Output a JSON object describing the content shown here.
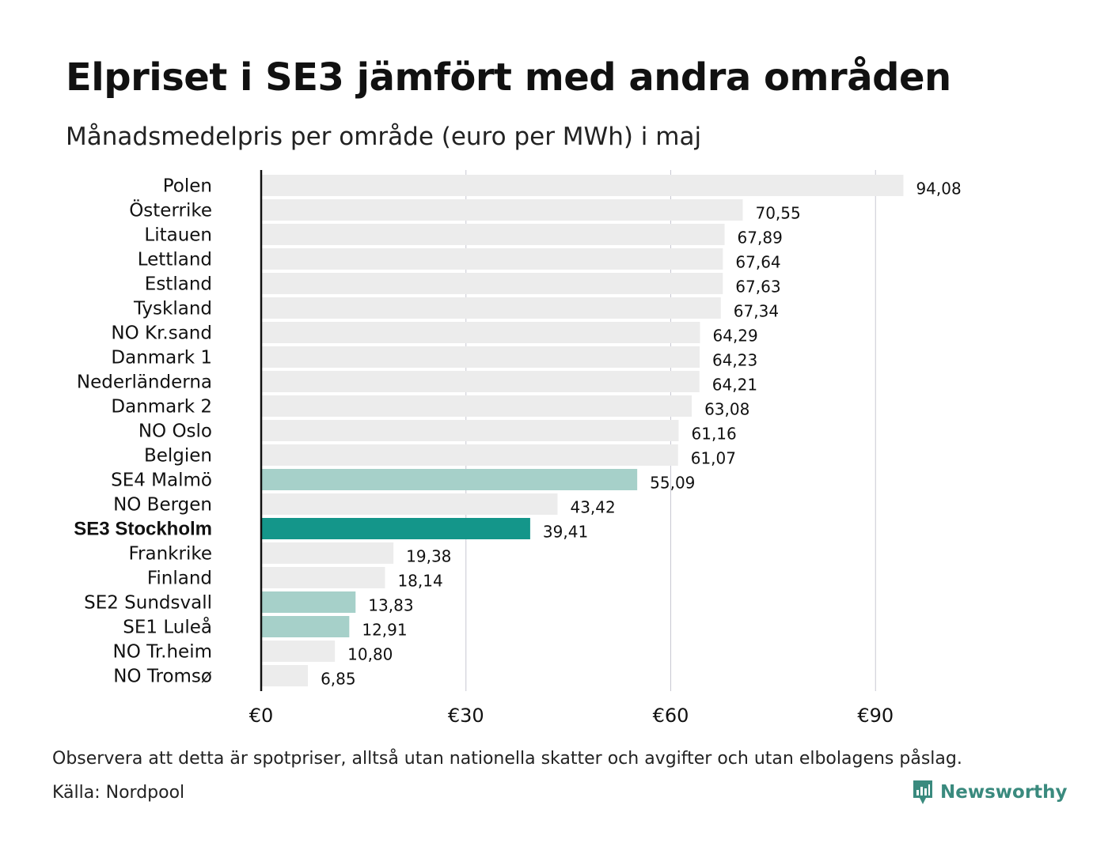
{
  "title": "Elpriset i SE3 jämfört med andra områden",
  "subtitle": "Månadsmedelpris per område (euro per MWh) i maj",
  "footnote": "Observera att detta är spotpriser, alltså utan nationella skatter och avgifter och utan elbolagens påslag.",
  "source": "Källa: Nordpool",
  "brand": {
    "name": "Newsworthy",
    "icon": "chart-bubble-icon",
    "color": "#3a8a7e"
  },
  "colors": {
    "default": "#ececec",
    "highlight": "#a6d0c9",
    "focus": "#14968a",
    "axis": "#111111",
    "grid": "#c8c8d2"
  },
  "chart_data": {
    "type": "bar",
    "orientation": "horizontal",
    "categories": [
      "Polen",
      "Österrike",
      "Litauen",
      "Lettland",
      "Estland",
      "Tyskland",
      "NO Kr.sand",
      "Danmark 1",
      "Nederländerna",
      "Danmark 2",
      "NO Oslo",
      "Belgien",
      "SE4 Malmö",
      "NO Bergen",
      "SE3 Stockholm",
      "Frankrike",
      "Finland",
      "SE2 Sundsvall",
      "SE1 Luleå",
      "NO Tr.heim",
      "NO Tromsø"
    ],
    "values": [
      94.08,
      70.55,
      67.89,
      67.64,
      67.63,
      67.34,
      64.29,
      64.23,
      64.21,
      63.08,
      61.16,
      61.07,
      55.09,
      43.42,
      39.41,
      19.38,
      18.14,
      13.83,
      12.91,
      10.8,
      6.85
    ],
    "value_labels": [
      "94,08",
      "70,55",
      "67,89",
      "67,64",
      "67,63",
      "67,34",
      "64,29",
      "64,23",
      "64,21",
      "63,08",
      "61,16",
      "61,07",
      "55,09",
      "43,42",
      "39,41",
      "19,38",
      "18,14",
      "13,83",
      "12,91",
      "10,80",
      "6,85"
    ],
    "bar_style": [
      "default",
      "default",
      "default",
      "default",
      "default",
      "default",
      "default",
      "default",
      "default",
      "default",
      "default",
      "default",
      "highlight",
      "default",
      "focus",
      "default",
      "default",
      "highlight",
      "highlight",
      "default",
      "default"
    ],
    "bold_categories": [
      "SE3 Stockholm"
    ],
    "x_ticks": [
      0,
      30,
      60,
      90
    ],
    "x_tick_labels": [
      "€0",
      "€30",
      "€60",
      "€90"
    ],
    "xlim": [
      0,
      99
    ],
    "grid": "vertical",
    "xlabel": "",
    "ylabel": ""
  }
}
